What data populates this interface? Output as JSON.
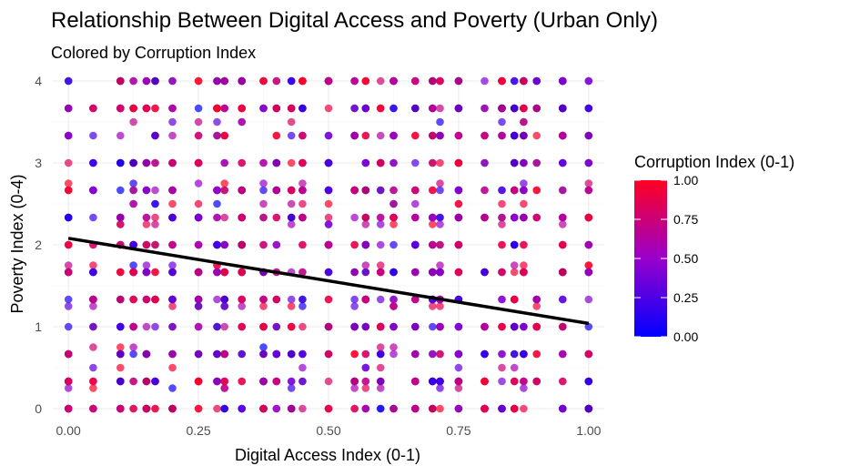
{
  "chart_data": {
    "type": "scatter",
    "title": "Relationship Between Digital Access and Poverty (Urban Only)",
    "subtitle": "Colored by Corruption Index",
    "xlabel": "Digital Access Index (0-1)",
    "ylabel": "Poverty Index (0-4)",
    "xlim": [
      -0.03,
      1.03
    ],
    "ylim": [
      -0.1,
      4.1
    ],
    "x_ticks": [
      "0.00",
      "0.25",
      "0.50",
      "0.75",
      "1.00"
    ],
    "x_tick_values": [
      0,
      0.25,
      0.5,
      0.75,
      1
    ],
    "y_ticks": [
      "0",
      "1",
      "2",
      "3",
      "4"
    ],
    "y_tick_values": [
      0,
      1,
      2,
      3,
      4
    ],
    "grid": true,
    "trend_line": {
      "x": [
        0,
        1
      ],
      "y": [
        2.08,
        1.04
      ],
      "color": "#000000"
    },
    "color_scale": {
      "title": "Corruption Index (0-1)",
      "ticks": [
        "0.00",
        "0.25",
        "0.50",
        "0.75",
        "1.00"
      ],
      "tick_values": [
        0,
        0.25,
        0.5,
        0.75,
        1
      ],
      "low_color": "#0000ff",
      "mid_color": "#9900cc",
      "high_color": "#ff0022",
      "legend_position": "right"
    },
    "x_grid_values": [
      0,
      0.0476,
      0.1,
      0.125,
      0.15,
      0.1667,
      0.2,
      0.25,
      0.2857,
      0.3,
      0.3333,
      0.375,
      0.4,
      0.4286,
      0.45,
      0.5,
      0.55,
      0.5714,
      0.6,
      0.625,
      0.6667,
      0.7,
      0.7143,
      0.75,
      0.8,
      0.8333,
      0.8571,
      0.875,
      0.9,
      0.95,
      1
    ],
    "y_grid_values": [
      0,
      0.3333,
      0.6667,
      1,
      1.3333,
      1.6667,
      2,
      2.3333,
      2.6667,
      3,
      3.3333,
      3.6667,
      4
    ],
    "y_extra_values": [
      0.25,
      0.5,
      0.75,
      1.25,
      1.75,
      2.25,
      2.5,
      2.75,
      3.5
    ],
    "point_count": 1400,
    "point_opacity": 0.7
  }
}
